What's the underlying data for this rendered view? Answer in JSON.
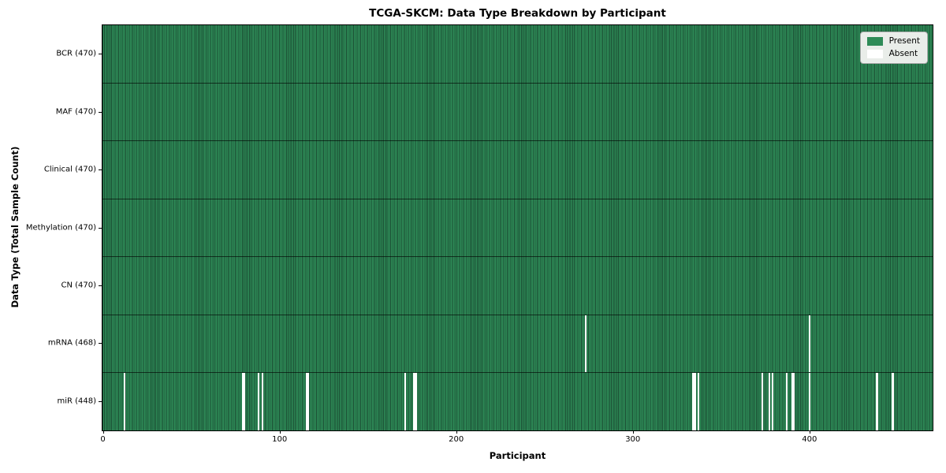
{
  "figure": {
    "title": "TCGA-SKCM: Data Type Breakdown by Participant",
    "xlabel": "Participant",
    "ylabel": "Data Type (Total Sample Count)"
  },
  "colors": {
    "present": "#2e8b57",
    "present_edge": "#1b4d33",
    "absent": "#ffffff",
    "row_divider": "#1a3526",
    "legend_bg": "#e9ede9",
    "legend_border": "#a9a9a9",
    "axis": "#000000"
  },
  "chart_data": {
    "type": "heatmap",
    "title": "TCGA-SKCM: Data Type Breakdown by Participant",
    "xlabel": "Participant",
    "ylabel": "Data Type (Total Sample Count)",
    "x_ticks": [
      0,
      100,
      200,
      300,
      400
    ],
    "x_range": [
      0,
      470
    ],
    "n_participants": 470,
    "grid": false,
    "legend_position": "upper right",
    "legend": [
      {
        "label": "Present",
        "color": "#2e8b57"
      },
      {
        "label": "Absent",
        "color": "#ffffff"
      }
    ],
    "rows": [
      {
        "label": "BCR (470)",
        "data_type": "BCR",
        "total_samples": 470,
        "absent_participants": []
      },
      {
        "label": "MAF (470)",
        "data_type": "MAF",
        "total_samples": 470,
        "absent_participants": []
      },
      {
        "label": "Clinical (470)",
        "data_type": "Clinical",
        "total_samples": 470,
        "absent_participants": []
      },
      {
        "label": "Methylation (470)",
        "data_type": "Methylation",
        "total_samples": 470,
        "absent_participants": []
      },
      {
        "label": "CN (470)",
        "data_type": "CN",
        "total_samples": 470,
        "absent_participants": []
      },
      {
        "label": "mRNA (468)",
        "data_type": "mRNA",
        "total_samples": 468,
        "absent_participants": [
          273,
          400
        ]
      },
      {
        "label": "miR (448)",
        "data_type": "miR",
        "total_samples": 448,
        "absent_participants": [
          12,
          79,
          80,
          88,
          90,
          115,
          116,
          171,
          176,
          177,
          334,
          335,
          337,
          373,
          377,
          379,
          387,
          390,
          391,
          400,
          438,
          447
        ]
      }
    ]
  }
}
